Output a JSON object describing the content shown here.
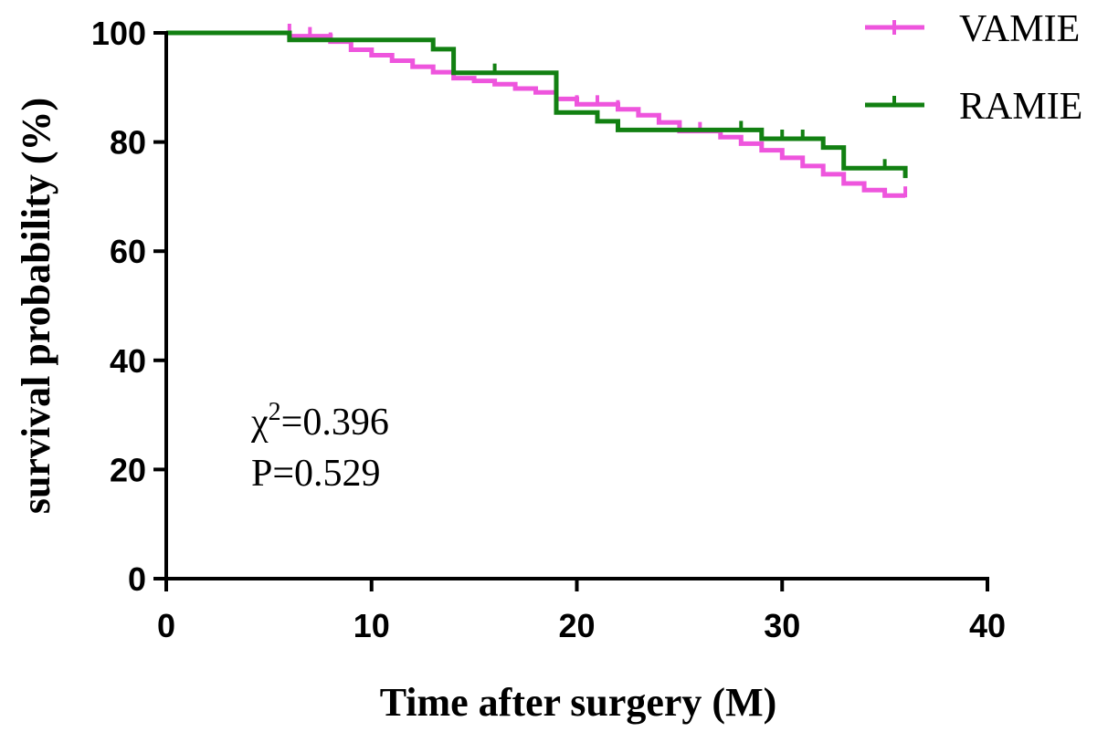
{
  "chart_data": {
    "type": "line",
    "subtype": "kaplan-meier",
    "title": "",
    "xlabel": "Time after surgery (M)",
    "ylabel": "survival probability (%)",
    "xlim": [
      0,
      40
    ],
    "ylim": [
      0,
      100
    ],
    "xticks": [
      0,
      10,
      20,
      30,
      40
    ],
    "yticks": [
      0,
      20,
      40,
      60,
      80,
      100
    ],
    "grid": false,
    "legend_position": "top-right",
    "annotations": {
      "chi_symbol": "χ",
      "chi_superscript": "2",
      "chi_value": "=0.396",
      "p_text": "P=0.529"
    },
    "series": [
      {
        "name": "VAMIE",
        "color": "#ee55dd",
        "steps": [
          [
            0,
            100
          ],
          [
            6,
            100
          ],
          [
            6,
            99.4
          ],
          [
            8,
            99.4
          ],
          [
            8,
            98.4
          ],
          [
            9,
            98.4
          ],
          [
            9,
            96.9
          ],
          [
            10,
            96.9
          ],
          [
            10,
            95.9
          ],
          [
            11,
            95.9
          ],
          [
            11,
            94.9
          ],
          [
            12,
            94.9
          ],
          [
            12,
            93.8
          ],
          [
            13,
            93.8
          ],
          [
            13,
            92.8
          ],
          [
            14,
            92.8
          ],
          [
            14,
            91.7
          ],
          [
            15,
            91.7
          ],
          [
            15,
            91.2
          ],
          [
            16,
            91.2
          ],
          [
            16,
            90.6
          ],
          [
            17,
            90.6
          ],
          [
            17,
            89.8
          ],
          [
            18,
            89.8
          ],
          [
            18,
            89.1
          ],
          [
            19,
            89.1
          ],
          [
            19,
            87.9
          ],
          [
            20,
            87.9
          ],
          [
            20,
            86.9
          ],
          [
            22,
            86.9
          ],
          [
            22,
            86.0
          ],
          [
            23,
            86.0
          ],
          [
            23,
            84.9
          ],
          [
            24,
            84.9
          ],
          [
            24,
            83.6
          ],
          [
            25,
            83.6
          ],
          [
            25,
            82.0
          ],
          [
            27,
            82.0
          ],
          [
            27,
            80.9
          ],
          [
            28,
            80.9
          ],
          [
            28,
            79.7
          ],
          [
            29,
            79.7
          ],
          [
            29,
            78.5
          ],
          [
            30,
            78.5
          ],
          [
            30,
            77.1
          ],
          [
            31,
            77.1
          ],
          [
            31,
            75.6
          ],
          [
            32,
            75.6
          ],
          [
            32,
            74.1
          ],
          [
            33,
            74.1
          ],
          [
            33,
            72.4
          ],
          [
            34,
            72.4
          ],
          [
            34,
            71.2
          ],
          [
            35,
            71.2
          ],
          [
            35,
            70.2
          ],
          [
            36,
            70.2
          ]
        ],
        "censored": [
          [
            6,
            100
          ],
          [
            7,
            99.4
          ],
          [
            8,
            98.4
          ],
          [
            20,
            86.9
          ],
          [
            21,
            86.9
          ],
          [
            22,
            86.0
          ],
          [
            24,
            83.6
          ],
          [
            25,
            82.0
          ],
          [
            26,
            82.0
          ],
          [
            27,
            80.9
          ],
          [
            36,
            70.2
          ]
        ]
      },
      {
        "name": "RAMIE",
        "color": "#128012",
        "steps": [
          [
            0,
            100
          ],
          [
            6,
            100
          ],
          [
            6,
            98.7
          ],
          [
            13,
            98.7
          ],
          [
            13,
            97.0
          ],
          [
            14,
            97.0
          ],
          [
            14,
            92.7
          ],
          [
            19,
            92.7
          ],
          [
            19,
            85.4
          ],
          [
            21,
            85.4
          ],
          [
            21,
            83.8
          ],
          [
            22,
            83.8
          ],
          [
            22,
            82.2
          ],
          [
            29,
            82.2
          ],
          [
            29,
            80.6
          ],
          [
            32,
            80.6
          ],
          [
            32,
            79.0
          ],
          [
            33,
            79.0
          ],
          [
            33,
            75.2
          ],
          [
            36,
            75.2
          ],
          [
            36,
            73.4
          ]
        ],
        "censored": [
          [
            16,
            92.7
          ],
          [
            28,
            82.2
          ],
          [
            30,
            80.6
          ],
          [
            31,
            80.6
          ],
          [
            35,
            75.2
          ]
        ]
      }
    ]
  }
}
